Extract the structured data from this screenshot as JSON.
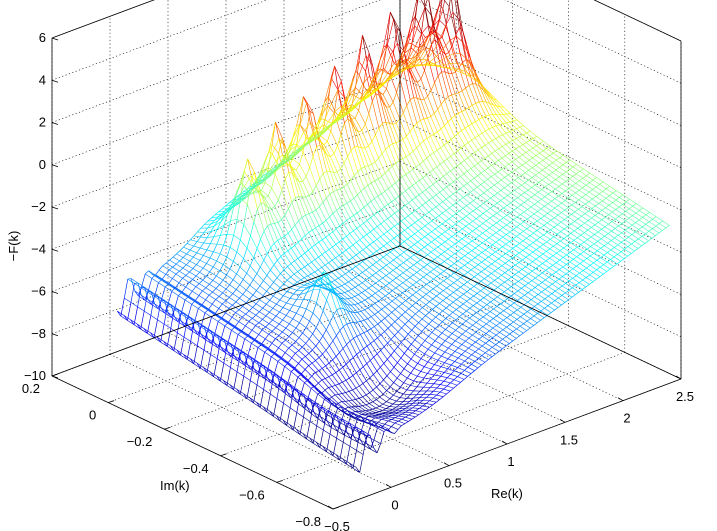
{
  "chart_data": {
    "type": "surface",
    "title": "",
    "xlabel": "Re(k)",
    "ylabel": "Im(k)",
    "zlabel": "−F(k)",
    "xlim": [
      -0.5,
      2.5
    ],
    "ylim": [
      -0.8,
      0.2
    ],
    "zlim": [
      -10,
      6
    ],
    "x_ticks": [
      "−0.5",
      "0",
      "0.5",
      "1",
      "1.5",
      "2",
      "2.5"
    ],
    "y_ticks": [
      "0.2",
      "0",
      "−0.2",
      "−0.4",
      "−0.6",
      "−0.8"
    ],
    "z_ticks": [
      "6",
      "4",
      "2",
      "0",
      "−2",
      "−4",
      "−6",
      "−8",
      "−10"
    ],
    "grid": true,
    "colormap": "jet",
    "peaks": [
      {
        "re": 0.47,
        "im": -0.1,
        "value": 1.4
      },
      {
        "re": 0.72,
        "im": -0.1,
        "value": 1.9
      },
      {
        "re": 0.97,
        "im": -0.1,
        "value": 2.5
      },
      {
        "re": 1.22,
        "im": -0.1,
        "value": 3.0
      },
      {
        "re": 1.47,
        "im": -0.1,
        "value": 3.4
      },
      {
        "re": 1.72,
        "im": -0.1,
        "value": 3.9
      },
      {
        "re": 1.97,
        "im": -0.1,
        "value": 4.4
      },
      {
        "re": 2.2,
        "im": -0.1,
        "value": 4.6
      },
      {
        "re": 0.4,
        "im": -0.4,
        "value": -2.0
      }
    ]
  }
}
